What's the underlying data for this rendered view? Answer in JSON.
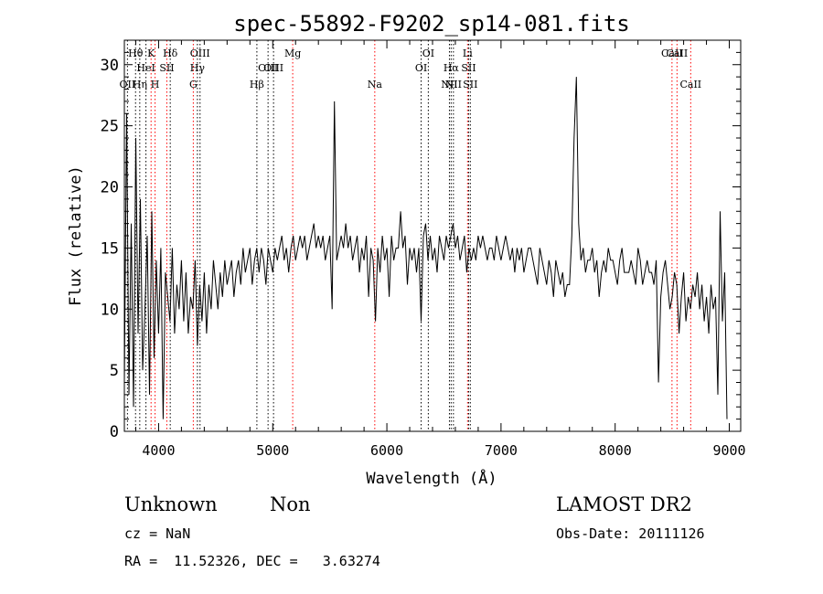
{
  "chart_data": {
    "type": "line",
    "title": "spec-55892-F9202_sp14-081.fits",
    "xlabel": "Wavelength (Å)",
    "ylabel": "Flux (relative)",
    "xlim": [
      3700,
      9100
    ],
    "ylim": [
      0,
      32
    ],
    "x_ticks": [
      4000,
      5000,
      6000,
      7000,
      8000,
      9000
    ],
    "y_ticks": [
      0,
      5,
      10,
      15,
      20,
      25,
      30
    ],
    "grid": false,
    "series": [
      {
        "wavelength": [
          3700,
          3720,
          3740,
          3760,
          3780,
          3800,
          3820,
          3840,
          3860,
          3880,
          3900,
          3920,
          3940,
          3960,
          3980,
          4000,
          4020,
          4040,
          4060,
          4080,
          4100,
          4120,
          4140,
          4160,
          4180,
          4200,
          4220,
          4240,
          4260,
          4280,
          4300,
          4320,
          4340,
          4360,
          4380,
          4400,
          4420,
          4440,
          4460,
          4480,
          4500,
          4520,
          4540,
          4560,
          4580,
          4600,
          4620,
          4640,
          4660,
          4680,
          4700,
          4720,
          4740,
          4760,
          4780,
          4800,
          4820,
          4840,
          4860,
          4880,
          4900,
          4920,
          4940,
          4960,
          4980,
          5000,
          5020,
          5040,
          5060,
          5080,
          5100,
          5120,
          5140,
          5160,
          5180,
          5200,
          5220,
          5240,
          5260,
          5280,
          5300,
          5320,
          5340,
          5360,
          5380,
          5400,
          5420,
          5440,
          5460,
          5480,
          5500,
          5520,
          5540,
          5560,
          5580,
          5600,
          5620,
          5640,
          5660,
          5680,
          5700,
          5720,
          5740,
          5760,
          5780,
          5800,
          5820,
          5840,
          5860,
          5880,
          5900,
          5920,
          5940,
          5960,
          5980,
          6000,
          6020,
          6040,
          6060,
          6080,
          6100,
          6120,
          6140,
          6160,
          6180,
          6200,
          6220,
          6240,
          6260,
          6280,
          6300,
          6320,
          6340,
          6360,
          6380,
          6400,
          6420,
          6440,
          6460,
          6480,
          6500,
          6520,
          6540,
          6560,
          6580,
          6600,
          6620,
          6640,
          6660,
          6680,
          6700,
          6720,
          6740,
          6760,
          6780,
          6800,
          6820,
          6840,
          6860,
          6880,
          6900,
          6920,
          6940,
          6960,
          6980,
          7000,
          7020,
          7040,
          7060,
          7080,
          7100,
          7120,
          7140,
          7160,
          7180,
          7200,
          7220,
          7240,
          7260,
          7280,
          7300,
          7320,
          7340,
          7360,
          7380,
          7400,
          7420,
          7440,
          7460,
          7480,
          7500,
          7520,
          7540,
          7560,
          7580,
          7600,
          7620,
          7640,
          7660,
          7680,
          7700,
          7720,
          7740,
          7760,
          7780,
          7800,
          7820,
          7840,
          7860,
          7880,
          7900,
          7920,
          7940,
          7960,
          7980,
          8000,
          8020,
          8040,
          8060,
          8080,
          8100,
          8120,
          8140,
          8160,
          8180,
          8200,
          8220,
          8240,
          8260,
          8280,
          8300,
          8320,
          8340,
          8360,
          8380,
          8400,
          8420,
          8440,
          8460,
          8480,
          8500,
          8520,
          8540,
          8560,
          8580,
          8600,
          8620,
          8640,
          8660,
          8680,
          8700,
          8720,
          8740,
          8760,
          8780,
          8800,
          8820,
          8840,
          8860,
          8880,
          8900,
          8920,
          8940,
          8960,
          8980,
          9000
        ],
        "flux": [
          4,
          26,
          3,
          17,
          2,
          24,
          8,
          19,
          5,
          10,
          16,
          3,
          18,
          6,
          14,
          8,
          15,
          1,
          13,
          11,
          9,
          15,
          8,
          12,
          10,
          14,
          9,
          13,
          8,
          11,
          10,
          14,
          7,
          12,
          9,
          13,
          8,
          12,
          10,
          14,
          12,
          10,
          13,
          11,
          14,
          12,
          13,
          14,
          11,
          13,
          14,
          12,
          15,
          13,
          14,
          15,
          12,
          14,
          15,
          13,
          15,
          14,
          12,
          15,
          14,
          13,
          15,
          14,
          15,
          16,
          14,
          15,
          13,
          15,
          16,
          14,
          15,
          16,
          15,
          16,
          14,
          15,
          16,
          17,
          15,
          16,
          15,
          16,
          14,
          15,
          16,
          10,
          27,
          14,
          15,
          16,
          15,
          17,
          15,
          16,
          14,
          15,
          16,
          13,
          15,
          14,
          16,
          11,
          15,
          14,
          9,
          15,
          13,
          16,
          14,
          15,
          11,
          16,
          14,
          15,
          15,
          18,
          15,
          16,
          12,
          15,
          14,
          15,
          13,
          15,
          9,
          16,
          17,
          14,
          16,
          14,
          15,
          13,
          16,
          15,
          14,
          16,
          15,
          16,
          17,
          15,
          16,
          14,
          15,
          16,
          13,
          15,
          14,
          15,
          14,
          16,
          15,
          16,
          15,
          14,
          15,
          15,
          14,
          16,
          15,
          14,
          15,
          16,
          15,
          14,
          15,
          13,
          15,
          14,
          15,
          13,
          14,
          15,
          15,
          14,
          13,
          12,
          15,
          14,
          13,
          12,
          14,
          13,
          11,
          14,
          13,
          12,
          13,
          11,
          12,
          12,
          16,
          24,
          29,
          17,
          14,
          15,
          13,
          14,
          14,
          15,
          13,
          14,
          11,
          13,
          14,
          13,
          15,
          14,
          14,
          13,
          12,
          14,
          15,
          13,
          13,
          13,
          14,
          13,
          12,
          15,
          14,
          12,
          13,
          14,
          13,
          13,
          12,
          14,
          4,
          11,
          13,
          14,
          12,
          10,
          11,
          13,
          12,
          8,
          11,
          13,
          9,
          11,
          10,
          12,
          11,
          13,
          10,
          12,
          9,
          11,
          8,
          12,
          10,
          11,
          3,
          18,
          9,
          13,
          1
        ]
      }
    ],
    "line_markers": [
      {
        "label": "OII",
        "wavelength": 3727,
        "row": 3,
        "color": "#000000"
      },
      {
        "label": "Hθ",
        "wavelength": 3798,
        "row": 1,
        "color": "#000000"
      },
      {
        "label": "Hη",
        "wavelength": 3835,
        "row": 3,
        "color": "#000000"
      },
      {
        "label": "HeI",
        "wavelength": 3889,
        "row": 2,
        "color": "#000000"
      },
      {
        "label": "K",
        "wavelength": 3934,
        "row": 1,
        "color": "#ff0000"
      },
      {
        "label": "H",
        "wavelength": 3969,
        "row": 3,
        "color": "#ff0000"
      },
      {
        "label": "SII",
        "wavelength": 4072,
        "row": 2,
        "color": "#ff0000"
      },
      {
        "label": "Hδ",
        "wavelength": 4102,
        "row": 1,
        "color": "#000000"
      },
      {
        "label": "G",
        "wavelength": 4304,
        "row": 3,
        "color": "#ff0000"
      },
      {
        "label": "Hγ",
        "wavelength": 4340,
        "row": 2,
        "color": "#000000"
      },
      {
        "label": "OIII",
        "wavelength": 4363,
        "row": 1,
        "color": "#000000"
      },
      {
        "label": "Hβ",
        "wavelength": 4861,
        "row": 3,
        "color": "#000000"
      },
      {
        "label": "OIII",
        "wavelength": 4959,
        "row": 2,
        "color": "#000000"
      },
      {
        "label": "OIII",
        "wavelength": 5007,
        "row": 2,
        "color": "#000000"
      },
      {
        "label": "Mg",
        "wavelength": 5175,
        "row": 1,
        "color": "#ff0000"
      },
      {
        "label": "Na",
        "wavelength": 5894,
        "row": 3,
        "color": "#ff0000"
      },
      {
        "label": "OI",
        "wavelength": 6300,
        "row": 2,
        "color": "#000000"
      },
      {
        "label": "OI",
        "wavelength": 6363,
        "row": 1,
        "color": "#000000"
      },
      {
        "label": "NII",
        "wavelength": 6548,
        "row": 3,
        "color": "#000000"
      },
      {
        "label": "Hα",
        "wavelength": 6563,
        "row": 2,
        "color": "#000000"
      },
      {
        "label": "NII",
        "wavelength": 6583,
        "row": 3,
        "color": "#000000"
      },
      {
        "label": "Li",
        "wavelength": 6707,
        "row": 1,
        "color": "#ff0000"
      },
      {
        "label": "SII",
        "wavelength": 6716,
        "row": 2,
        "color": "#000000"
      },
      {
        "label": "SII",
        "wavelength": 6731,
        "row": 3,
        "color": "#000000"
      },
      {
        "label": "CaII",
        "wavelength": 8498,
        "row": 1,
        "color": "#ff0000"
      },
      {
        "label": "CaII",
        "wavelength": 8542,
        "row": 1,
        "color": "#ff0000"
      },
      {
        "label": "CaII",
        "wavelength": 8662,
        "row": 3,
        "color": "#ff0000"
      }
    ]
  },
  "info": {
    "class": "Unknown",
    "subclass": "Non",
    "survey": "LAMOST DR2",
    "redshift": "cz = NaN",
    "obs_date": "Obs-Date: 20111126",
    "coords": "RA =  11.52326, DEC =   3.63274"
  }
}
